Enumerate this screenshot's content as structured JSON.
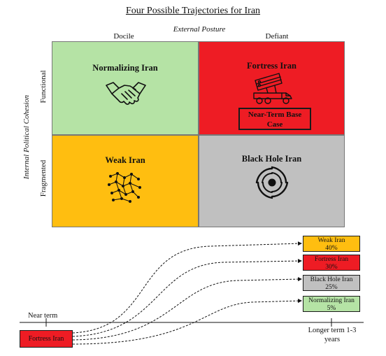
{
  "title": "Four Possible Trajectories for Iran",
  "axes": {
    "x_title": "External Posture",
    "x_left": "Docile",
    "x_right": "Defiant",
    "y_title": "Internal Political Cohesion",
    "y_top": "Functional",
    "y_bottom": "Fragmented"
  },
  "quadrants": {
    "top_left": {
      "title": "Normalizing Iran",
      "color": "#b5e3a5",
      "icon": "handshake-icon"
    },
    "top_right": {
      "title": "Fortress Iran",
      "color": "#ee1c24",
      "icon": "missile-launcher-icon",
      "badge": "Near-Term Base Case"
    },
    "bottom_left": {
      "title": "Weak Iran",
      "color": "#ffbe10",
      "icon": "scattered-network-icon"
    },
    "bottom_right": {
      "title": "Black Hole Iran",
      "color": "#c0c0c0",
      "icon": "vortex-icon"
    }
  },
  "timeline": {
    "start_label": "Near term",
    "end_label": "Longer term 1-3 years",
    "start_state": {
      "label": "Fortress Iran",
      "color": "#ee1c24"
    },
    "outcomes": [
      {
        "name": "Weak Iran",
        "pct": "40%",
        "color": "#ffbe10"
      },
      {
        "name": "Fortress Iran",
        "pct": "30%",
        "color": "#ee1c24"
      },
      {
        "name": "Black Hole Iran",
        "pct": "25%",
        "color": "#c0c0c0"
      },
      {
        "name": "Normalizing Iran",
        "pct": "5%",
        "color": "#b5e3a5"
      }
    ]
  }
}
